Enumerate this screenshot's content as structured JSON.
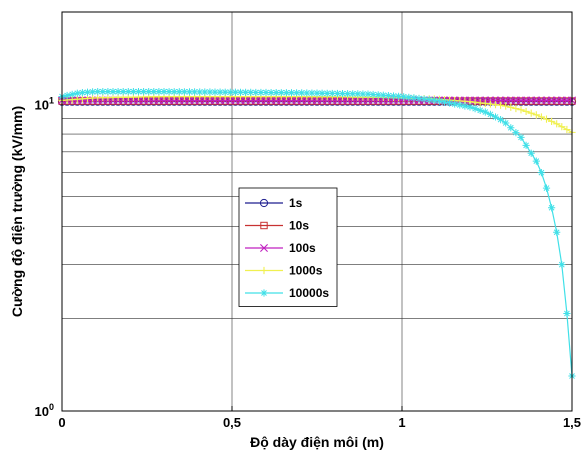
{
  "chart_data": {
    "type": "line",
    "xlabel": "Độ dày điện môi (m)",
    "ylabel": "Cường độ điện trường (kV/mm)",
    "xlim": [
      0,
      1.5
    ],
    "ylim": [
      1,
      20
    ],
    "yscale": "log",
    "grid": true,
    "legend_position": "center-left",
    "x_ticks": [
      {
        "value": 0,
        "label": "0"
      },
      {
        "value": 0.5,
        "label": "0,5"
      },
      {
        "value": 1,
        "label": "1"
      },
      {
        "value": 1.5,
        "label": "1,5"
      }
    ],
    "y_ticks": [
      {
        "value": 1,
        "base": "10",
        "exp": "0"
      },
      {
        "value": 10,
        "base": "10",
        "exp": "1"
      }
    ],
    "series": [
      {
        "name": "1s",
        "color": "#1f1f8f",
        "marker": "circle",
        "x": [
          0,
          0.25,
          0.5,
          0.75,
          1.0,
          1.25,
          1.5
        ],
        "y": [
          10.2,
          10.2,
          10.2,
          10.2,
          10.2,
          10.2,
          10.2
        ]
      },
      {
        "name": "10s",
        "color": "#c83232",
        "marker": "square",
        "x": [
          0,
          0.25,
          0.5,
          0.75,
          1.0,
          1.25,
          1.5
        ],
        "y": [
          10.25,
          10.25,
          10.25,
          10.25,
          10.25,
          10.25,
          10.25
        ]
      },
      {
        "name": "100s",
        "color": "#c020c0",
        "marker": "x",
        "x": [
          0,
          0.25,
          0.5,
          0.75,
          1.0,
          1.25,
          1.5
        ],
        "y": [
          10.3,
          10.3,
          10.3,
          10.3,
          10.3,
          10.3,
          10.3
        ]
      },
      {
        "name": "1000s",
        "color": "#f0f050",
        "marker": "plus",
        "x": [
          0,
          0.1,
          0.3,
          0.5,
          0.7,
          0.9,
          1.0,
          1.1,
          1.2,
          1.3,
          1.35,
          1.4,
          1.45,
          1.5
        ],
        "y": [
          10.3,
          10.5,
          10.6,
          10.6,
          10.6,
          10.55,
          10.5,
          10.4,
          10.2,
          9.9,
          9.6,
          9.2,
          8.7,
          8.1
        ]
      },
      {
        "name": "10000s",
        "color": "#40e0e8",
        "marker": "asterisk",
        "x": [
          0,
          0.05,
          0.1,
          0.3,
          0.5,
          0.7,
          0.9,
          1.0,
          1.1,
          1.2,
          1.25,
          1.3,
          1.35,
          1.4,
          1.42,
          1.44,
          1.46,
          1.47,
          1.48,
          1.49,
          1.5
        ],
        "y": [
          10.6,
          10.9,
          11.0,
          11.0,
          10.95,
          10.9,
          10.8,
          10.6,
          10.3,
          9.8,
          9.4,
          8.8,
          7.8,
          6.4,
          5.6,
          4.6,
          3.6,
          3.0,
          2.4,
          1.8,
          1.3
        ]
      }
    ]
  }
}
